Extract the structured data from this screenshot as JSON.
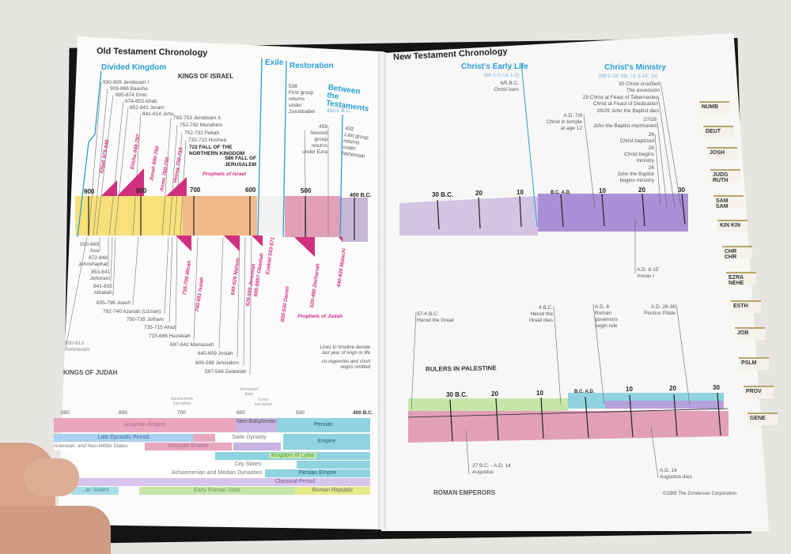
{
  "left_page": {
    "title": "Old Testament Chronology",
    "headings": {
      "divided_kingdom": "Divided Kingdom",
      "kings_of_israel": "KINGS OF ISRAEL",
      "exile": "Exile",
      "restoration": "Restoration",
      "between": "Between the Testaments",
      "between_dates": "432-5 B.C.",
      "kings_of_judah": "KINGS OF JUDAH",
      "prophets_israel": "Prophets of Israel",
      "prophets_judah": "Prophets of Judah"
    },
    "israel_kings": [
      "930-909 Jeroboam I",
      "909-886 Baasha",
      "885-874 Omri",
      "874-853 Ahab",
      "852-841 Joram",
      "841-814 Jehu",
      "793-753 Jeroboam II",
      "752-742 Menahem",
      "752-732 Pekah",
      "732-722 Hoshea"
    ],
    "fall_north": [
      "722 FALL OF THE",
      "NORTHERN KINGDOM"
    ],
    "fall_jerusalem": [
      "586 FALL OF",
      "JERUSALEM"
    ],
    "restoration_events": [
      [
        "538",
        "First group",
        "returns",
        "under",
        "Zerubbabel"
      ],
      [
        "458",
        "Second",
        "group",
        "returns",
        "under Ezra"
      ],
      [
        "432",
        "Last group",
        "returns",
        "under",
        "Nehemiah"
      ]
    ],
    "israel_prophets": [
      "Elijah 875-848",
      "Elisha 848-797",
      "Jonah 800-750",
      "Amos 760-750",
      "Hosea 750-715"
    ],
    "judah_prophets": [
      "735-700 Micah",
      "740-681 Isaiah",
      "645-620 Nahum",
      "626-585 Jeremiah",
      "605-585? Obadiah",
      "Ezekiel 593-571",
      "605-530 Daniel",
      "520-480 Zechariah",
      "440-430 Malachi"
    ],
    "timeline_ticks": [
      "900",
      "800",
      "700",
      "600",
      "500",
      "400 B.C."
    ],
    "judah_kings": [
      [
        "910-869",
        "Asa"
      ],
      [
        "872-848",
        "Jehoshaphat"
      ],
      [
        "853-841",
        "Jehoram"
      ],
      [
        "841-835",
        "Athaliah"
      ],
      [
        "835-796 Joash"
      ],
      [
        "792-740 Azariah (Uzziah)"
      ],
      [
        "750-735 Jotham"
      ],
      [
        "735-715 Ahaz"
      ],
      [
        "715-686 Hezekiah"
      ],
      [
        "697-642 Manasseh"
      ],
      [
        "640-609 Josiah"
      ],
      [
        "609-598 Jehoiakim"
      ],
      [
        "597-586 Zedekiah"
      ],
      [
        "930-913",
        "Rehoboam"
      ]
    ],
    "notes": [
      "Lines to timeline denote",
      "last year of reign or life",
      "co-regencies and short",
      "reigns omitted"
    ],
    "world": {
      "ticks": [
        "900",
        "800",
        "700",
        "600",
        "500",
        "400 B.C."
      ],
      "annotations": [
        "Sennacherib inscription",
        "Jehoiachin texts",
        "Cyrus inscription"
      ],
      "rows": [
        "Assyrian Empire",
        "Neo-Babylonian",
        "Persian",
        "Late Dynastic Period",
        "Saite Dynasty",
        "Empire",
        "Aramean, and Neo-Hittite States",
        "Assyrian Empire",
        "Kingdom of Lydia",
        "City States",
        "Achaemenian and Median Dynasties",
        "Persian Empire",
        "Classical Period",
        "...an States",
        "Early Roman State",
        "Roman Republic"
      ]
    }
  },
  "right_page": {
    "title": "New Testament Chronology",
    "early_life": "Christ's Early Life",
    "early_life_ref": "(Mt 1-2; Lk 1-2)",
    "ministry": "Christ's Ministry",
    "ministry_ref": "(Mt 2-28; Mk; Lk 3-24; Jn)",
    "events": [
      [
        "6/5 B.C.",
        "Christ born"
      ],
      [
        "A.D. 7/8",
        "Christ in temple",
        "at age 12"
      ],
      [
        "30 Christ crucified",
        "The ascension"
      ],
      [
        "29 Christ at Feast of Tabernacles",
        "Christ at Feast of Dedication"
      ],
      [
        "28/29 John the Baptist dies"
      ],
      [
        "27/28",
        "John the Baptist imprisoned"
      ],
      [
        "26",
        "Christ baptized"
      ],
      [
        "26",
        "Christ begins",
        "ministry"
      ],
      [
        "26",
        "John the Baptist",
        "begins ministry"
      ]
    ],
    "ticks": [
      "30 B.C.",
      "20",
      "10",
      "B.C. A.D.",
      "10",
      "20",
      "30"
    ],
    "annas": [
      "A.D. 6-15",
      "Annas I"
    ],
    "rulers": [
      [
        "37-4 B.C.",
        "Herod the Great"
      ],
      [
        "4 B.C.",
        "Herod the",
        "Great dies"
      ],
      [
        "A.D. 6",
        "Roman",
        "governors",
        "begin rule"
      ],
      [
        "A.D. 26-36",
        "Pontius Pilate"
      ]
    ],
    "rulers_heading": "RULERS IN PALESTINE",
    "emperors": [
      [
        "27 B.C. - A.D. 14",
        "Augustus"
      ],
      [
        "A.D. 14",
        "Augustus dies"
      ]
    ],
    "emperors_heading": "ROMAN EMPERORS",
    "copyright": "©1985 The Zondervan Corporation"
  },
  "thumb_tabs": [
    "NUMB",
    "DEUT",
    "JOSH",
    "JUDG RUTH",
    "SAM SAM",
    "KIN KIN",
    "CHR CHR",
    "EZRA NEHE",
    "ESTH",
    "JOB",
    "PSLM",
    "PROV",
    "GENE"
  ],
  "colors": {
    "accent_blue": "#2a9fd3",
    "prophet_pink": "#d0307e",
    "yellow": "#f8e07a",
    "orange": "#f2b98a",
    "rose": "#e2a0b8",
    "purple": "#b9a4d8",
    "teal": "#8fd3e0",
    "green": "#c6e6a8"
  }
}
